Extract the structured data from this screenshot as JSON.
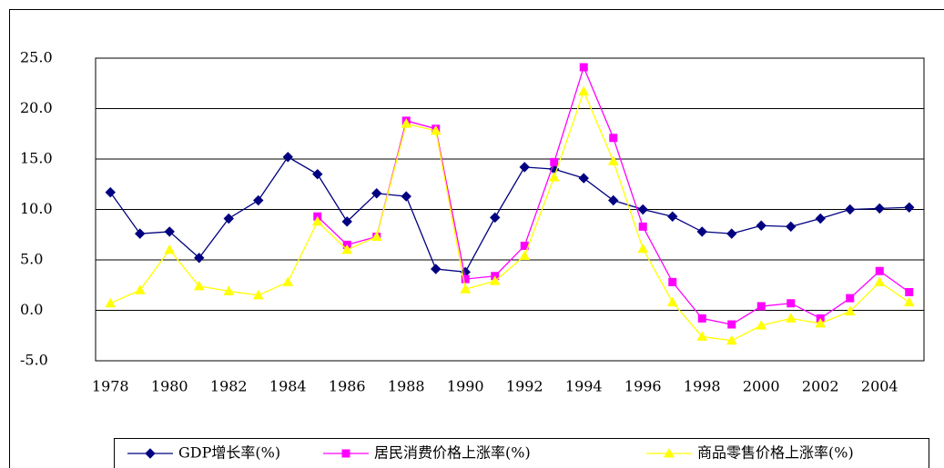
{
  "chart_data": {
    "type": "line",
    "categories": [
      "1978",
      null,
      "1980",
      null,
      "1982",
      null,
      "1984",
      null,
      "1986",
      null,
      "1988",
      null,
      "1990",
      null,
      "1992",
      null,
      "1994",
      null,
      "1996",
      null,
      "1998",
      null,
      "2000",
      null,
      "2002",
      null,
      "2004",
      null
    ],
    "series": [
      {
        "name": "GDP增长率(%)",
        "color": "#000080",
        "marker": "diamond",
        "values": [
          11.7,
          7.6,
          7.8,
          5.2,
          9.1,
          10.9,
          15.2,
          13.5,
          8.8,
          11.6,
          11.3,
          4.1,
          3.8,
          9.2,
          14.2,
          14.0,
          13.1,
          10.9,
          10.0,
          9.3,
          7.8,
          7.6,
          8.4,
          8.3,
          9.1,
          10.0,
          10.1,
          10.2
        ]
      },
      {
        "name": "居民消费价格上涨率(%)",
        "color": "#ff00ff",
        "marker": "square",
        "values": [
          null,
          null,
          null,
          null,
          null,
          null,
          null,
          9.3,
          6.5,
          7.3,
          18.8,
          18.0,
          3.1,
          3.4,
          6.4,
          14.7,
          24.1,
          17.1,
          8.3,
          2.8,
          -0.8,
          -1.4,
          0.4,
          0.7,
          -0.8,
          1.2,
          3.9,
          1.8
        ]
      },
      {
        "name": "商品零售价格上涨率(%)",
        "color": "#ffff00",
        "marker": "triangle",
        "values": [
          0.7,
          2.0,
          6.0,
          2.4,
          1.9,
          1.5,
          2.8,
          8.8,
          6.0,
          7.3,
          18.5,
          17.8,
          2.1,
          2.9,
          5.4,
          13.2,
          21.7,
          14.8,
          6.1,
          0.8,
          -2.6,
          -3.0,
          -1.5,
          -0.8,
          -1.3,
          -0.1,
          2.8,
          0.8
        ]
      }
    ],
    "ylim": [
      -5,
      25
    ],
    "yticks": [
      {
        "value": -5,
        "label": "-5.0"
      },
      {
        "value": 0,
        "label": "0.0"
      },
      {
        "value": 5,
        "label": "5.0"
      },
      {
        "value": 10,
        "label": "10.0"
      },
      {
        "value": 15,
        "label": "15.0"
      },
      {
        "value": 20,
        "label": "20.0"
      },
      {
        "value": 25,
        "label": "25.0"
      }
    ],
    "grid": true,
    "legend": "bottom"
  }
}
